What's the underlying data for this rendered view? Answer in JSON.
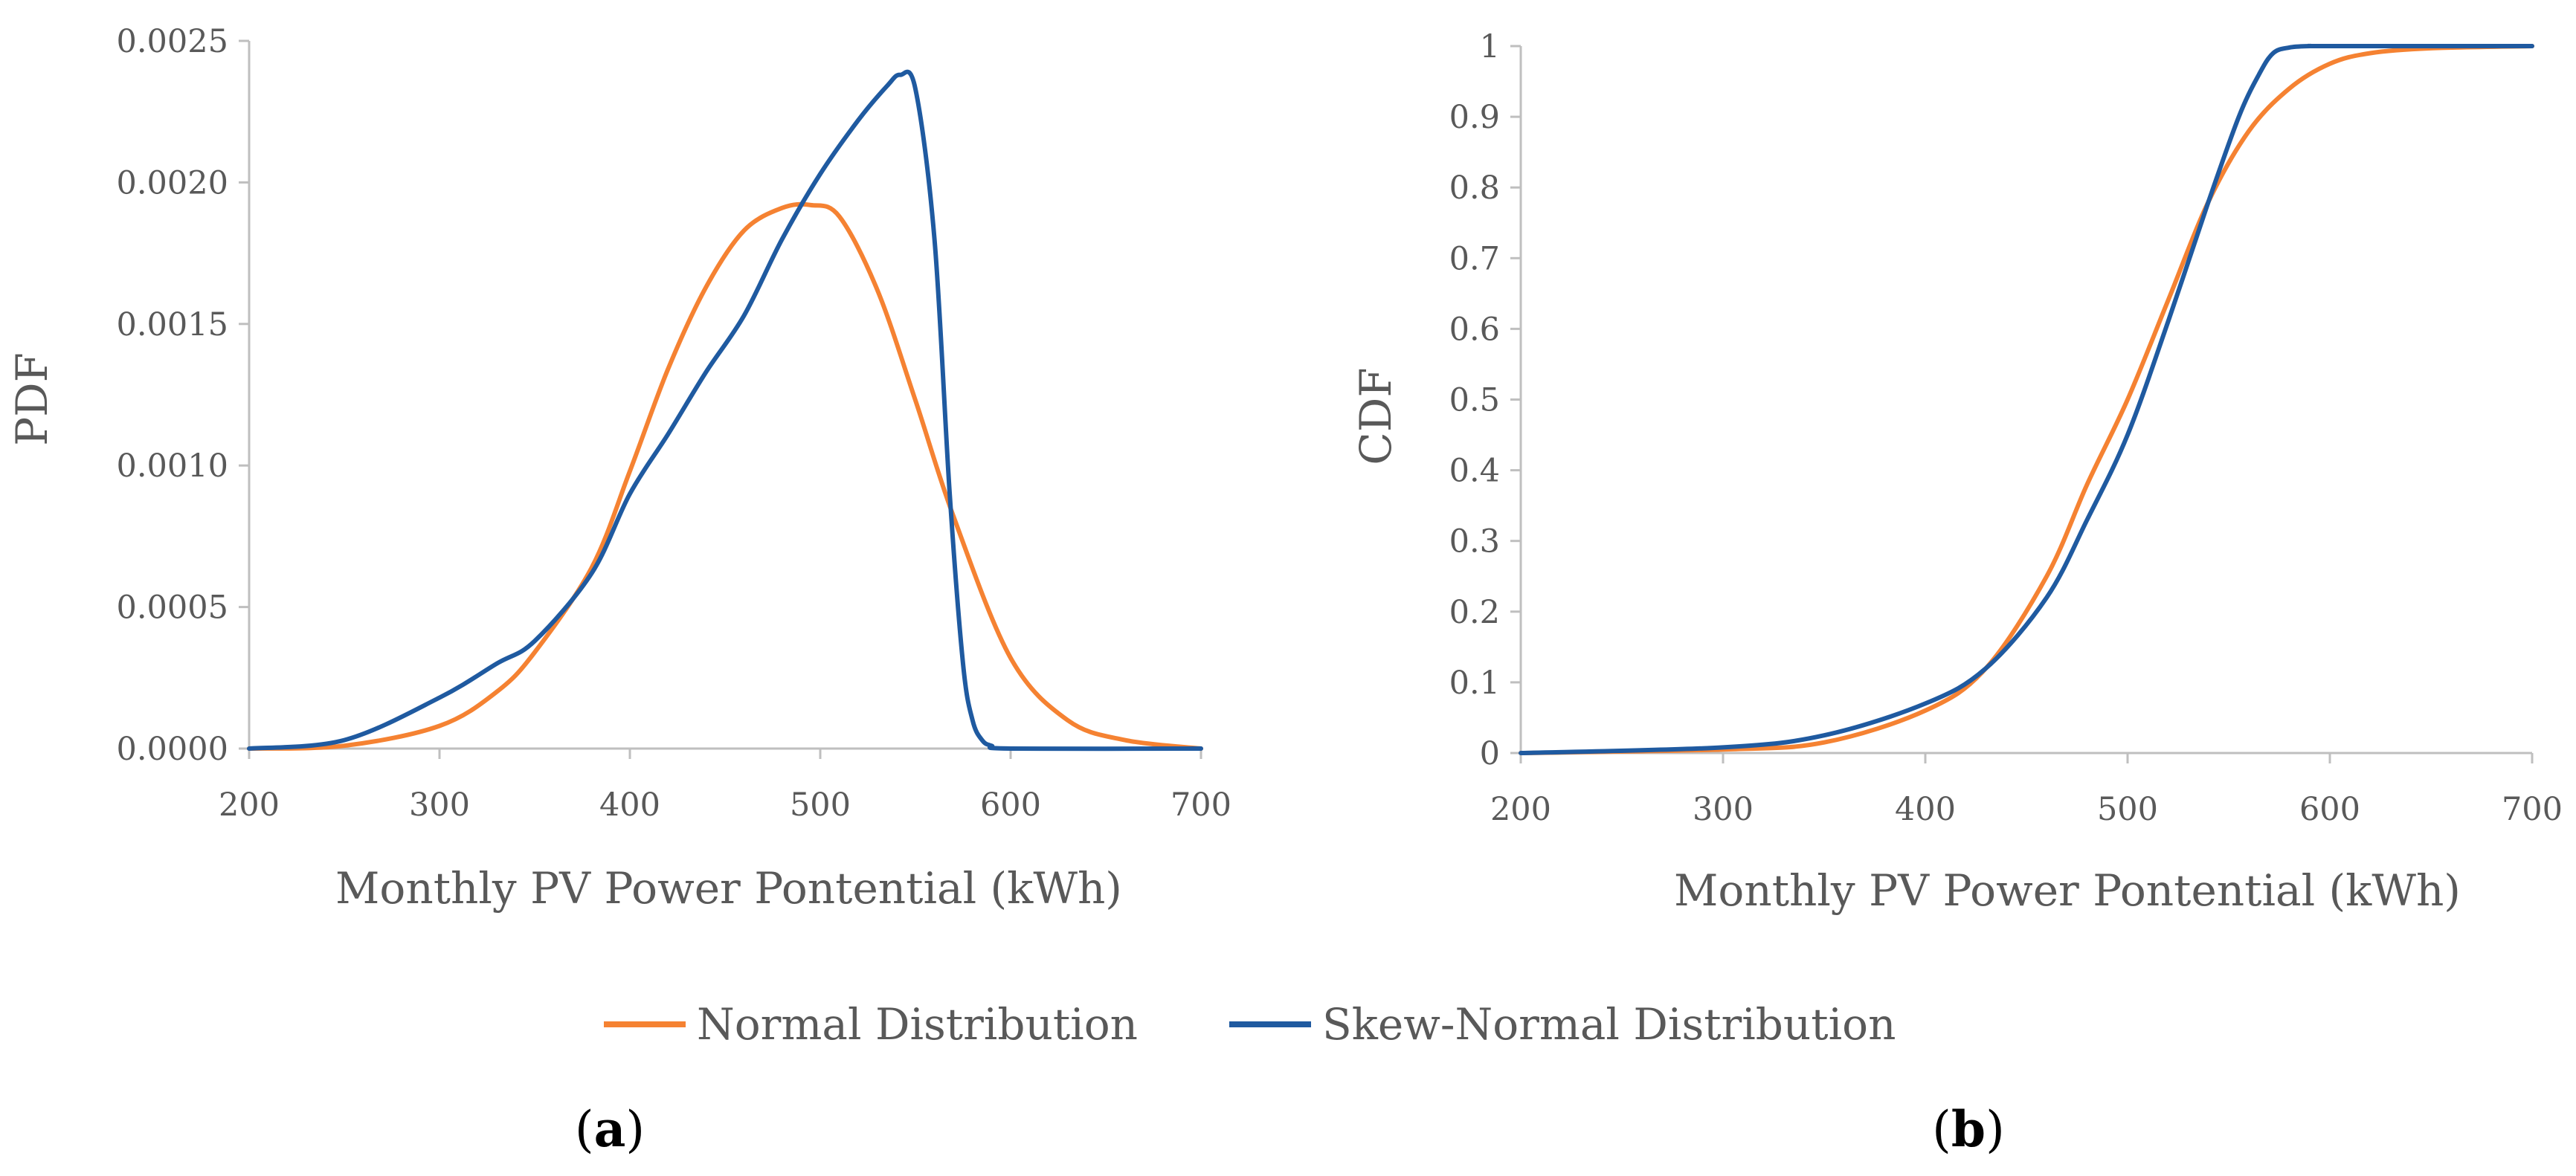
{
  "colors": {
    "normal": "#F58232",
    "skew": "#1F5AA0",
    "axis": "#BFBFBF",
    "text": "#595959"
  },
  "legend": {
    "normal": "Normal Distribution",
    "skew": "Skew-Normal Distribution"
  },
  "panels": {
    "a": {
      "open": "(",
      "letter": "a",
      "close": ")"
    },
    "b": {
      "open": "(",
      "letter": "b",
      "close": ")"
    }
  },
  "chart_data": [
    {
      "type": "line",
      "panel": "a",
      "title": "",
      "xlabel": "Monthly PV Power Pontential (kWh)",
      "ylabel": "PDF",
      "xlim": [
        200,
        700
      ],
      "ylim": [
        0,
        0.0025
      ],
      "x_ticks": [
        "200",
        "300",
        "400",
        "500",
        "600",
        "700"
      ],
      "y_ticks": [
        "0.0000",
        "0.0005",
        "0.0010",
        "0.0015",
        "0.0020",
        "0.0025"
      ],
      "grid": false,
      "series": [
        {
          "name": "Normal Distribution",
          "x": [
            200,
            250,
            300,
            330,
            350,
            380,
            400,
            420,
            440,
            460,
            480,
            495,
            510,
            530,
            550,
            570,
            600,
            630,
            660,
            700
          ],
          "y": [
            0.0,
            1e-05,
            8e-05,
            0.0002,
            0.00034,
            0.00064,
            0.00098,
            0.00134,
            0.00163,
            0.00183,
            0.00191,
            0.00192,
            0.00188,
            0.00162,
            0.00123,
            0.00082,
            0.00032,
            0.0001,
            3e-05,
            0.0
          ]
        },
        {
          "name": "Skew-Normal Distribution",
          "x": [
            200,
            250,
            300,
            330,
            350,
            380,
            400,
            420,
            440,
            460,
            480,
            500,
            520,
            535,
            542,
            550,
            560,
            568,
            575,
            580,
            585,
            590,
            600,
            700
          ],
          "y": [
            0.0,
            3e-05,
            0.00018,
            0.0003,
            0.00038,
            0.00062,
            0.0009,
            0.00111,
            0.00133,
            0.00153,
            0.0018,
            0.00203,
            0.00222,
            0.00234,
            0.00238,
            0.00233,
            0.0018,
            0.0009,
            0.0003,
            0.0001,
            3e-05,
            1e-05,
            0.0,
            0.0
          ]
        }
      ]
    },
    {
      "type": "line",
      "panel": "b",
      "title": "",
      "xlabel": "Monthly PV Power Pontential (kWh)",
      "ylabel": "CDF",
      "xlim": [
        200,
        700
      ],
      "ylim": [
        0,
        1
      ],
      "x_ticks": [
        "200",
        "300",
        "400",
        "500",
        "600",
        "700"
      ],
      "y_ticks": [
        "0",
        "0.1",
        "0.2",
        "0.3",
        "0.4",
        "0.5",
        "0.6",
        "0.7",
        "0.8",
        "0.9",
        "1"
      ],
      "grid": false,
      "series": [
        {
          "name": "Normal Distribution",
          "x": [
            200,
            300,
            350,
            400,
            430,
            460,
            480,
            500,
            520,
            540,
            560,
            580,
            600,
            620,
            650,
            700
          ],
          "y": [
            0.0,
            0.005,
            0.015,
            0.06,
            0.12,
            0.25,
            0.38,
            0.5,
            0.64,
            0.78,
            0.88,
            0.94,
            0.975,
            0.99,
            0.997,
            1.0
          ]
        },
        {
          "name": "Skew-Normal Distribution",
          "x": [
            200,
            300,
            350,
            400,
            430,
            460,
            480,
            500,
            520,
            540,
            555,
            565,
            572,
            580,
            590,
            600,
            700
          ],
          "y": [
            0.0,
            0.008,
            0.025,
            0.07,
            0.12,
            0.22,
            0.33,
            0.45,
            0.61,
            0.78,
            0.9,
            0.96,
            0.99,
            0.998,
            1.0,
            1.0,
            1.0
          ]
        }
      ]
    }
  ]
}
